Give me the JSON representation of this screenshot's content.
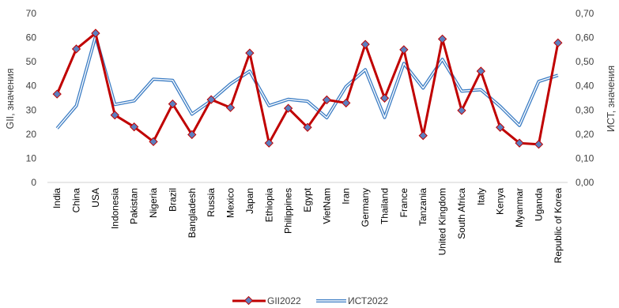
{
  "chart_data": {
    "type": "line",
    "categories": [
      "India",
      "China",
      "USA",
      "Indonesia",
      "Pakistan",
      "Nigeria",
      "Brazil",
      "Bangladesh",
      "Russia",
      "Mexico",
      "Japan",
      "Ethiopia",
      "Philippines",
      "Egypt",
      "VietNam",
      "Iran",
      "Germany",
      "Thailand",
      "France",
      "Tanzania",
      "United Kingdom",
      "South Africa",
      "Italy",
      "Kenya",
      "Myanmar",
      "Uganda",
      "Republic of Korea"
    ],
    "series": [
      {
        "name": "GII2022",
        "axis": "left",
        "color": "#C00000",
        "marker_color": "#5B7FBF",
        "values": [
          36.6,
          55.3,
          61.8,
          27.9,
          23.0,
          16.9,
          32.5,
          19.8,
          34.3,
          31.0,
          53.6,
          16.3,
          30.7,
          22.8,
          34.2,
          32.9,
          57.2,
          34.9,
          55.0,
          19.4,
          59.4,
          29.8,
          46.1,
          22.8,
          16.3,
          15.8,
          57.8
        ]
      },
      {
        "name": "ИСТ2022",
        "axis": "right",
        "color": "#3C7DC4",
        "values": [
          0.224,
          0.318,
          0.605,
          0.323,
          0.338,
          0.428,
          0.423,
          0.283,
          0.339,
          0.408,
          0.461,
          0.318,
          0.344,
          0.336,
          0.268,
          0.397,
          0.467,
          0.269,
          0.493,
          0.391,
          0.51,
          0.378,
          0.384,
          0.315,
          0.236,
          0.418,
          0.444
        ]
      }
    ],
    "ylabel_left": "GII, значения",
    "ylabel_right": "ИСТ, значения",
    "ylim_left": [
      0,
      70
    ],
    "ylim_right": [
      0,
      0.7
    ],
    "yticks_left": [
      "0",
      "10",
      "20",
      "30",
      "40",
      "50",
      "60",
      "70"
    ],
    "yticks_right": [
      "0,00",
      "0,10",
      "0,20",
      "0,30",
      "0,40",
      "0,50",
      "0,60",
      "0,70"
    ],
    "grid": false,
    "legend_position": "bottom"
  }
}
